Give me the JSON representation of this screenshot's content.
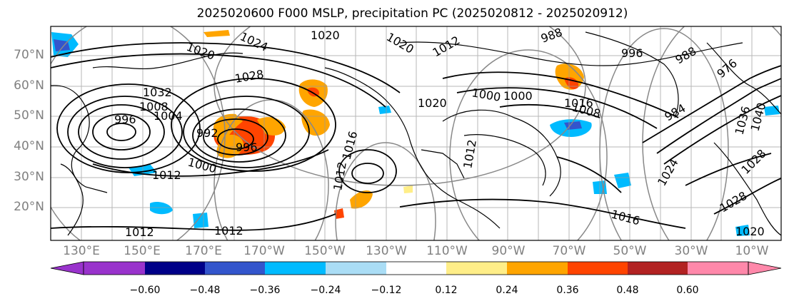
{
  "title": "2025020600 F000 MSLP, precipitation PC (2025020812 - 2025020912)",
  "lat_labels": [
    "70°N",
    "60°N",
    "50°N",
    "40°N",
    "30°N",
    "20°N"
  ],
  "lon_labels": [
    "130°E",
    "150°E",
    "170°E",
    "170°W",
    "150°W",
    "130°W",
    "110°W",
    "90°W",
    "70°W",
    "50°W",
    "30°W",
    "10°W"
  ],
  "colorbar": {
    "ticks": [
      "−0.60",
      "−0.48",
      "−0.36",
      "−0.24",
      "−0.12",
      "0.12",
      "0.24",
      "0.36",
      "0.48",
      "0.60"
    ],
    "colors": [
      "#9933cc",
      "#000088",
      "#3355cc",
      "#00bbff",
      "#aaddf5",
      "#ffffff",
      "#ffee88",
      "#ffa500",
      "#ff4400",
      "#b22222",
      "#ff88aa"
    ]
  },
  "isobar_labels": [
    "1020",
    "1024",
    "1020",
    "1020",
    "1028",
    "1032",
    "996",
    "1004",
    "1008",
    "992",
    "996",
    "1000",
    "1012",
    "1012",
    "1012",
    "1016",
    "1012",
    "1016",
    "1020",
    "1012",
    "988",
    "996",
    "1000",
    "1000",
    "1008",
    "984",
    "976",
    "988",
    "1036",
    "1040",
    "1024",
    "1028",
    "1028",
    "1016",
    "1020",
    "1012"
  ]
}
